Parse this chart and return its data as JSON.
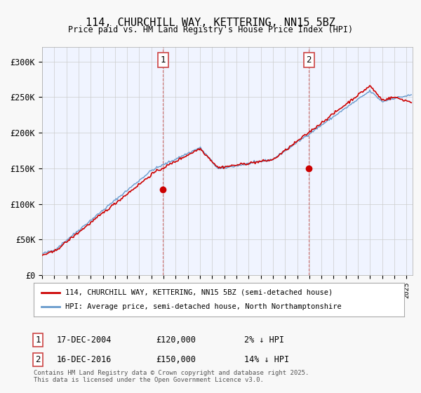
{
  "title": "114, CHURCHILL WAY, KETTERING, NN15 5BZ",
  "subtitle": "Price paid vs. HM Land Registry's House Price Index (HPI)",
  "ylabel_ticks": [
    "£0",
    "£50K",
    "£100K",
    "£150K",
    "£200K",
    "£250K",
    "£300K"
  ],
  "ytick_values": [
    0,
    50000,
    100000,
    150000,
    200000,
    250000,
    300000
  ],
  "ylim": [
    0,
    320000
  ],
  "xlim_start": 1995.0,
  "xlim_end": 2025.5,
  "legend_line1": "114, CHURCHILL WAY, KETTERING, NN15 5BZ (semi-detached house)",
  "legend_line2": "HPI: Average price, semi-detached house, North Northamptonshire",
  "line_color_red": "#cc0000",
  "line_color_blue": "#6699cc",
  "vline1_x": 2004.96,
  "vline2_x": 2016.96,
  "sale1_label": "1",
  "sale2_label": "2",
  "sale1_date": "17-DEC-2004",
  "sale1_price": "£120,000",
  "sale1_hpi": "2% ↓ HPI",
  "sale2_date": "16-DEC-2016",
  "sale2_price": "£150,000",
  "sale2_hpi": "14% ↓ HPI",
  "footnote": "Contains HM Land Registry data © Crown copyright and database right 2025.\nThis data is licensed under the Open Government Licence v3.0.",
  "bg_color": "#f0f4ff",
  "plot_bg_color": "#ffffff"
}
